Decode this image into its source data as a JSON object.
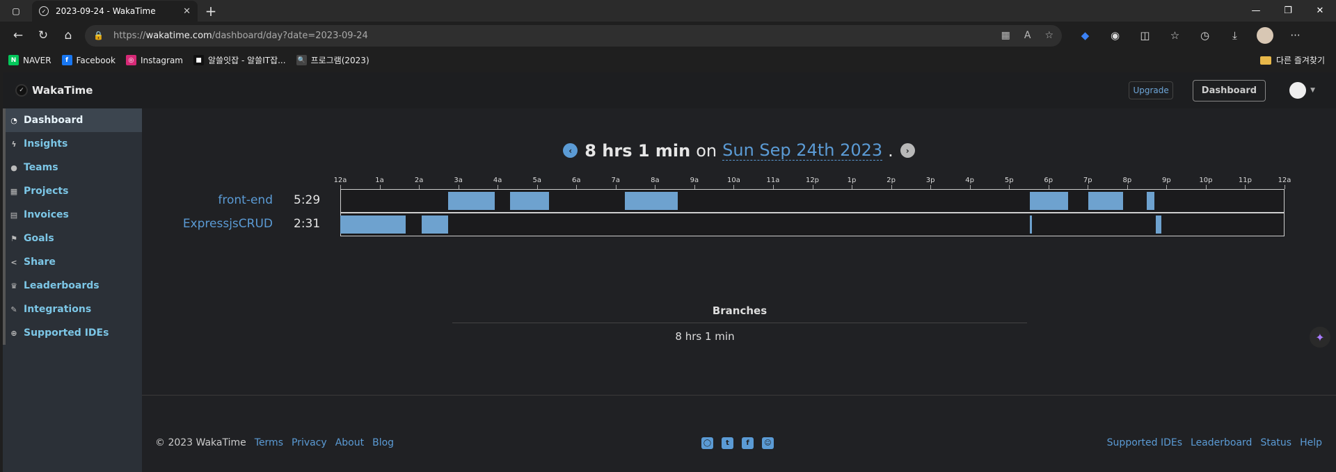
{
  "browser": {
    "tab_title": "2023-09-24 - WakaTime",
    "url_host": "wakatime.com",
    "url_prefix": "https://",
    "url_path": "/dashboard/day?date=2023-09-24",
    "bookmarks": [
      {
        "label": "NAVER",
        "color": "#03c75a",
        "glyph": "N"
      },
      {
        "label": "Facebook",
        "color": "#1877f2",
        "glyph": "f"
      },
      {
        "label": "Instagram",
        "color": "#d62976",
        "glyph": "◎"
      },
      {
        "label": "알쓸잇잡 - 알쓸IT잡...",
        "color": "#111111",
        "glyph": "■"
      },
      {
        "label": "프로그램(2023)",
        "color": "#444444",
        "glyph": "🔍"
      }
    ],
    "other_bookmarks": "다른 즐겨찾기"
  },
  "app": {
    "brand": "WakaTime",
    "upgrade_label": "Upgrade",
    "dashboard_label": "Dashboard"
  },
  "sidebar": {
    "items": [
      {
        "label": "Dashboard",
        "icon": "gauge-icon",
        "glyph": "◔",
        "active": true
      },
      {
        "label": "Insights",
        "icon": "bolt-icon",
        "glyph": "ϟ"
      },
      {
        "label": "Teams",
        "icon": "users-icon",
        "glyph": "●"
      },
      {
        "label": "Projects",
        "icon": "grid-icon",
        "glyph": "▦"
      },
      {
        "label": "Invoices",
        "icon": "file-icon",
        "glyph": "▤"
      },
      {
        "label": "Goals",
        "icon": "flag-icon",
        "glyph": "⚑"
      },
      {
        "label": "Share",
        "icon": "share-icon",
        "glyph": "<"
      },
      {
        "label": "Leaderboards",
        "icon": "trophy-icon",
        "glyph": "♛"
      },
      {
        "label": "Integrations",
        "icon": "wrench-icon",
        "glyph": "✎"
      },
      {
        "label": "Supported IDEs",
        "icon": "plus-circle-icon",
        "glyph": "⊕"
      }
    ]
  },
  "summary": {
    "total": "8 hrs 1 min",
    "on": "on",
    "date": "Sun Sep 24th 2023",
    "dot": "."
  },
  "chart_data": {
    "type": "timeline",
    "x_ticks": [
      "12a",
      "1a",
      "2a",
      "3a",
      "4a",
      "5a",
      "6a",
      "7a",
      "8a",
      "9a",
      "10a",
      "11a",
      "12p",
      "1p",
      "2p",
      "3p",
      "4p",
      "5p",
      "6p",
      "7p",
      "8p",
      "9p",
      "10p",
      "11p",
      "12a"
    ],
    "xlim_hours": [
      0,
      24
    ],
    "projects": [
      {
        "name": "front-end",
        "duration": "5:29",
        "segments_hours": [
          [
            2.75,
            3.92
          ],
          [
            4.32,
            5.3
          ],
          [
            7.23,
            8.58
          ],
          [
            17.53,
            18.5
          ],
          [
            19.02,
            19.9
          ],
          [
            20.5,
            20.7
          ]
        ]
      },
      {
        "name": "ExpressjsCRUD",
        "duration": "2:31",
        "segments_hours": [
          [
            0.0,
            1.67
          ],
          [
            2.07,
            2.75
          ],
          [
            17.53,
            17.58
          ],
          [
            20.73,
            20.87
          ]
        ]
      }
    ]
  },
  "branches": {
    "title": "Branches",
    "value": "8 hrs 1 min"
  },
  "footer": {
    "copyright": "© 2023 WakaTime",
    "left_links": [
      "Terms",
      "Privacy",
      "About",
      "Blog"
    ],
    "social": [
      {
        "icon": "github-icon",
        "glyph": "◯"
      },
      {
        "icon": "twitter-icon",
        "glyph": "t"
      },
      {
        "icon": "facebook-icon",
        "glyph": "f"
      },
      {
        "icon": "reddit-icon",
        "glyph": "☺"
      }
    ],
    "right_links": [
      "Supported IDEs",
      "Leaderboard",
      "Status",
      "Help"
    ]
  }
}
